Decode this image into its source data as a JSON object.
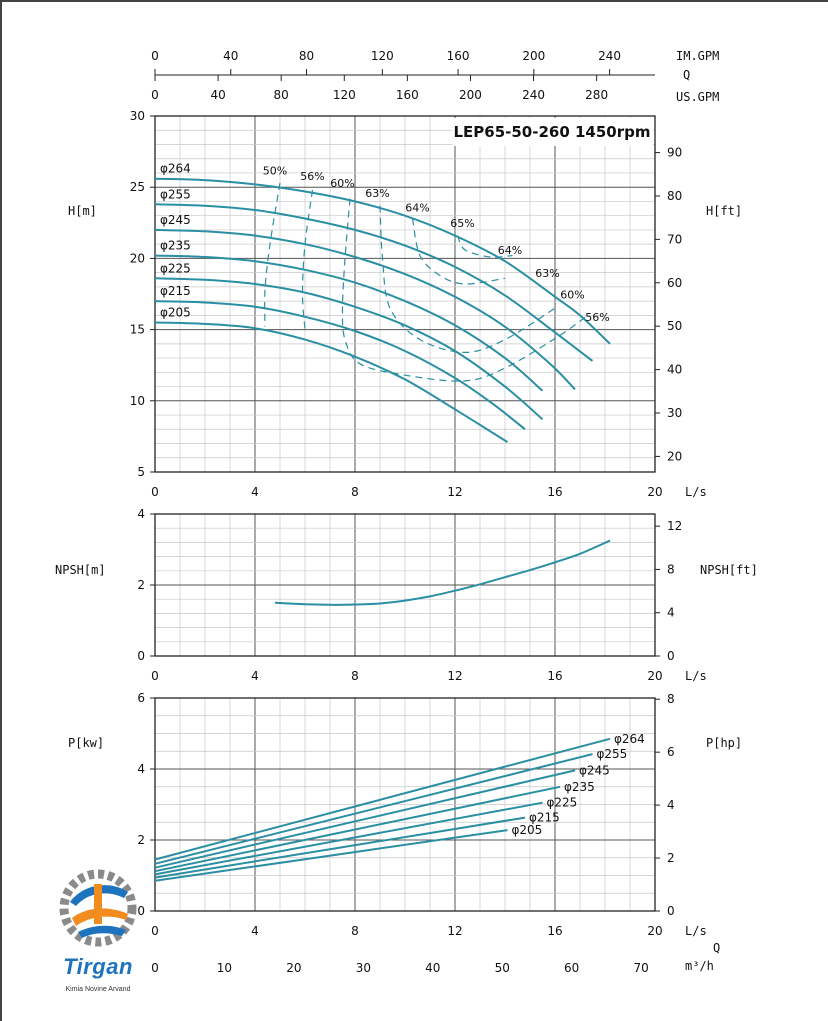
{
  "chart_data": {
    "type": "line",
    "title": "LEP65-50-260 1450rpm",
    "top_axes": [
      {
        "unit": "IM.GPM",
        "ticks": [
          "0",
          "40",
          "80",
          "120",
          "160",
          "200",
          "240"
        ]
      },
      {
        "unit": "Q",
        "ticks": []
      },
      {
        "unit": "US.GPM",
        "ticks": [
          "0",
          "40",
          "80",
          "120",
          "160",
          "200",
          "240",
          "280"
        ]
      }
    ],
    "flow_axis": {
      "unit": "L/s",
      "ticks": [
        "0",
        "4",
        "8",
        "12",
        "16",
        "20"
      ],
      "range": [
        0,
        20
      ]
    },
    "bottom_flow_axis": {
      "label": "Q",
      "unit": "m³/h",
      "ticks": [
        "0",
        "10",
        "20",
        "30",
        "40",
        "50",
        "60",
        "70"
      ]
    },
    "head_chart": {
      "ylabel_left": "H[m]",
      "ylabel_right": "H[ft]",
      "ylim": [
        5,
        30
      ],
      "left_ticks": [
        "5",
        "10",
        "15",
        "20",
        "25",
        "30"
      ],
      "right_ticks": [
        "20",
        "30",
        "40",
        "50",
        "60",
        "70",
        "80",
        "90"
      ],
      "series": [
        {
          "name": "φ264",
          "x": [
            0,
            2,
            4,
            6,
            8,
            10,
            12,
            14,
            16,
            17,
            18.2
          ],
          "y": [
            25.6,
            25.5,
            25.2,
            24.7,
            24.0,
            23.0,
            21.6,
            19.8,
            17.3,
            16.0,
            14.0
          ]
        },
        {
          "name": "φ255",
          "x": [
            0,
            2,
            4,
            6,
            8,
            10,
            12,
            14,
            16,
            17.5
          ],
          "y": [
            23.8,
            23.7,
            23.4,
            22.8,
            22.0,
            20.9,
            19.4,
            17.4,
            14.8,
            12.8
          ]
        },
        {
          "name": "φ245",
          "x": [
            0,
            2,
            4,
            6,
            8,
            10,
            12,
            14,
            15.8,
            16.8
          ],
          "y": [
            22.0,
            21.9,
            21.6,
            21.0,
            20.1,
            18.9,
            17.3,
            15.2,
            12.6,
            10.8
          ]
        },
        {
          "name": "φ235",
          "x": [
            0,
            2,
            4,
            6,
            8,
            10,
            12,
            14,
            15.5
          ],
          "y": [
            20.2,
            20.1,
            19.8,
            19.2,
            18.3,
            17.0,
            15.3,
            13.0,
            10.7
          ]
        },
        {
          "name": "φ225",
          "x": [
            0,
            2,
            4,
            6,
            8,
            10,
            12,
            14,
            15.5
          ],
          "y": [
            18.6,
            18.5,
            18.2,
            17.6,
            16.6,
            15.3,
            13.5,
            11.0,
            8.7
          ]
        },
        {
          "name": "φ215",
          "x": [
            0,
            2,
            4,
            6,
            8,
            10,
            12,
            13.5,
            14.8
          ],
          "y": [
            17.0,
            16.9,
            16.6,
            15.9,
            14.9,
            13.5,
            11.6,
            9.8,
            8.0
          ]
        },
        {
          "name": "φ205",
          "x": [
            0,
            2,
            4,
            6,
            8,
            10,
            12,
            14.1
          ],
          "y": [
            15.5,
            15.4,
            15.1,
            14.3,
            13.1,
            11.5,
            9.4,
            7.1
          ]
        }
      ],
      "efficiency_labels": [
        "50%",
        "56%",
        "60%",
        "63%",
        "64%",
        "65%",
        "64%",
        "63%",
        "60%",
        "56%"
      ]
    },
    "npsh_chart": {
      "ylabel_left": "NPSH[m]",
      "ylabel_right": "NPSH[ft]",
      "ylim": [
        0,
        4
      ],
      "left_ticks": [
        "0",
        "2",
        "4"
      ],
      "right_ticks": [
        "0",
        "4",
        "8",
        "12"
      ],
      "series": [
        {
          "name": "",
          "x": [
            4.8,
            6,
            7.2,
            8,
            9,
            10,
            11,
            12,
            13,
            14,
            15,
            16,
            17,
            18.2
          ],
          "y": [
            1.5,
            1.46,
            1.44,
            1.45,
            1.48,
            1.56,
            1.68,
            1.84,
            2.02,
            2.22,
            2.42,
            2.64,
            2.88,
            3.25
          ]
        }
      ]
    },
    "power_chart": {
      "ylabel_left": "P[kw]",
      "ylabel_right": "P[hp]",
      "ylim": [
        0,
        6
      ],
      "left_ticks": [
        "0",
        "2",
        "4",
        "6"
      ],
      "right_ticks": [
        "0",
        "2",
        "4",
        "6",
        "8"
      ],
      "series": [
        {
          "name": "φ264",
          "x": [
            0,
            18.2
          ],
          "y": [
            1.45,
            4.85
          ]
        },
        {
          "name": "φ255",
          "x": [
            0,
            17.5
          ],
          "y": [
            1.33,
            4.42
          ]
        },
        {
          "name": "φ245",
          "x": [
            0,
            16.8
          ],
          "y": [
            1.22,
            3.96
          ]
        },
        {
          "name": "φ235",
          "x": [
            0,
            16.2
          ],
          "y": [
            1.12,
            3.5
          ]
        },
        {
          "name": "φ225",
          "x": [
            0,
            15.5
          ],
          "y": [
            1.03,
            3.05
          ]
        },
        {
          "name": "φ215",
          "x": [
            0,
            14.8
          ],
          "y": [
            0.94,
            2.63
          ]
        },
        {
          "name": "φ205",
          "x": [
            0,
            14.1
          ],
          "y": [
            0.85,
            2.28
          ]
        }
      ]
    },
    "colors": {
      "curve": "#2a8fa3",
      "grid_major": "#555555",
      "grid_minor": "#c8c8c8"
    }
  },
  "logo": {
    "word": "Tirgan",
    "tagline": "Kimia Novine Arvand"
  }
}
